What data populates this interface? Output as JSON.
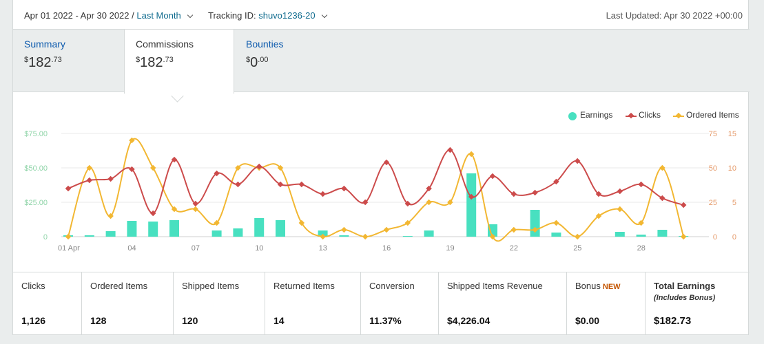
{
  "header": {
    "date_range": "Apr 01 2022 - Apr 30 2022 /",
    "period_label": "Last Month",
    "tracking_label": "Tracking ID:",
    "tracking_id": "shuvo1236-20",
    "last_updated": "Last Updated: Apr 30 2022 +00:00"
  },
  "tabs": [
    {
      "label": "Summary",
      "currency": "$",
      "whole": "182",
      "cents": ".73"
    },
    {
      "label": "Commissions",
      "currency": "$",
      "whole": "182",
      "cents": ".73"
    },
    {
      "label": "Bounties",
      "currency": "$",
      "whole": "0",
      "cents": ".00"
    }
  ],
  "legend": {
    "earnings": "Earnings",
    "clicks": "Clicks",
    "ordered": "Ordered Items"
  },
  "colors": {
    "earnings": "#48e0c0",
    "clicks": "#cc4b4b",
    "ordered": "#f2b732",
    "left_axis": "#8fd4a8",
    "right_axis": "#e59a6a"
  },
  "stats": [
    {
      "label": "Clicks",
      "value": "1,126"
    },
    {
      "label": "Ordered Items",
      "value": "128"
    },
    {
      "label": "Shipped Items",
      "value": "120"
    },
    {
      "label": "Returned Items",
      "value": "14"
    },
    {
      "label": "Conversion",
      "value": "11.37%"
    },
    {
      "label": "Shipped Items Revenue",
      "value": "$4,226.04"
    },
    {
      "label": "Bonus",
      "badge": "NEW",
      "value": "$0.00"
    },
    {
      "label": "Total Earnings",
      "sub": "(Includes Bonus)",
      "value": "$182.73"
    }
  ],
  "chart_data": {
    "type": "bar+line",
    "x": [
      "01 Apr",
      "02",
      "03",
      "04",
      "05",
      "06",
      "07",
      "08",
      "09",
      "10",
      "11",
      "12",
      "13",
      "14",
      "15",
      "16",
      "17",
      "18",
      "19",
      "20",
      "21",
      "22",
      "23",
      "24",
      "25",
      "26",
      "27",
      "28",
      "29",
      "30"
    ],
    "x_tick_labels": [
      "01 Apr",
      "04",
      "07",
      "10",
      "13",
      "16",
      "19",
      "22",
      "25",
      "28"
    ],
    "y_left": {
      "ticks": [
        "$75.00",
        "$50.00",
        "$25.00",
        "0"
      ],
      "range": [
        0,
        75
      ]
    },
    "y_right_clicks": {
      "ticks": [
        "75",
        "50",
        "25",
        "0"
      ],
      "range": [
        0,
        75
      ]
    },
    "y_right_items": {
      "ticks": [
        "15",
        "10",
        "5",
        "0"
      ],
      "range": [
        0,
        15
      ]
    },
    "series": [
      {
        "name": "Earnings",
        "kind": "bar",
        "axis": "left",
        "values": [
          1,
          1,
          4,
          11.5,
          11,
          12,
          0,
          4.5,
          6,
          13.5,
          12,
          0,
          4.5,
          1,
          0,
          0,
          0.5,
          4.5,
          0,
          46,
          9,
          0,
          19.5,
          3,
          0,
          0,
          3.5,
          1.5,
          5,
          0.5
        ]
      },
      {
        "name": "Clicks",
        "kind": "line",
        "axis": "right_clicks",
        "values": [
          35,
          41,
          42,
          49,
          17,
          56,
          24,
          46,
          38,
          51,
          38,
          38,
          31,
          35,
          25,
          54,
          24,
          35,
          63,
          29,
          44,
          31,
          32,
          40,
          55,
          31,
          33,
          38,
          28,
          23
        ]
      },
      {
        "name": "Ordered Items",
        "kind": "line",
        "axis": "right_items",
        "values": [
          0,
          10,
          3,
          14,
          10,
          4,
          4,
          2,
          10,
          10,
          10,
          2,
          0,
          1,
          0,
          1,
          2,
          5,
          5,
          12,
          0,
          1,
          1,
          2,
          0,
          3,
          4,
          2,
          10,
          0
        ]
      }
    ]
  }
}
